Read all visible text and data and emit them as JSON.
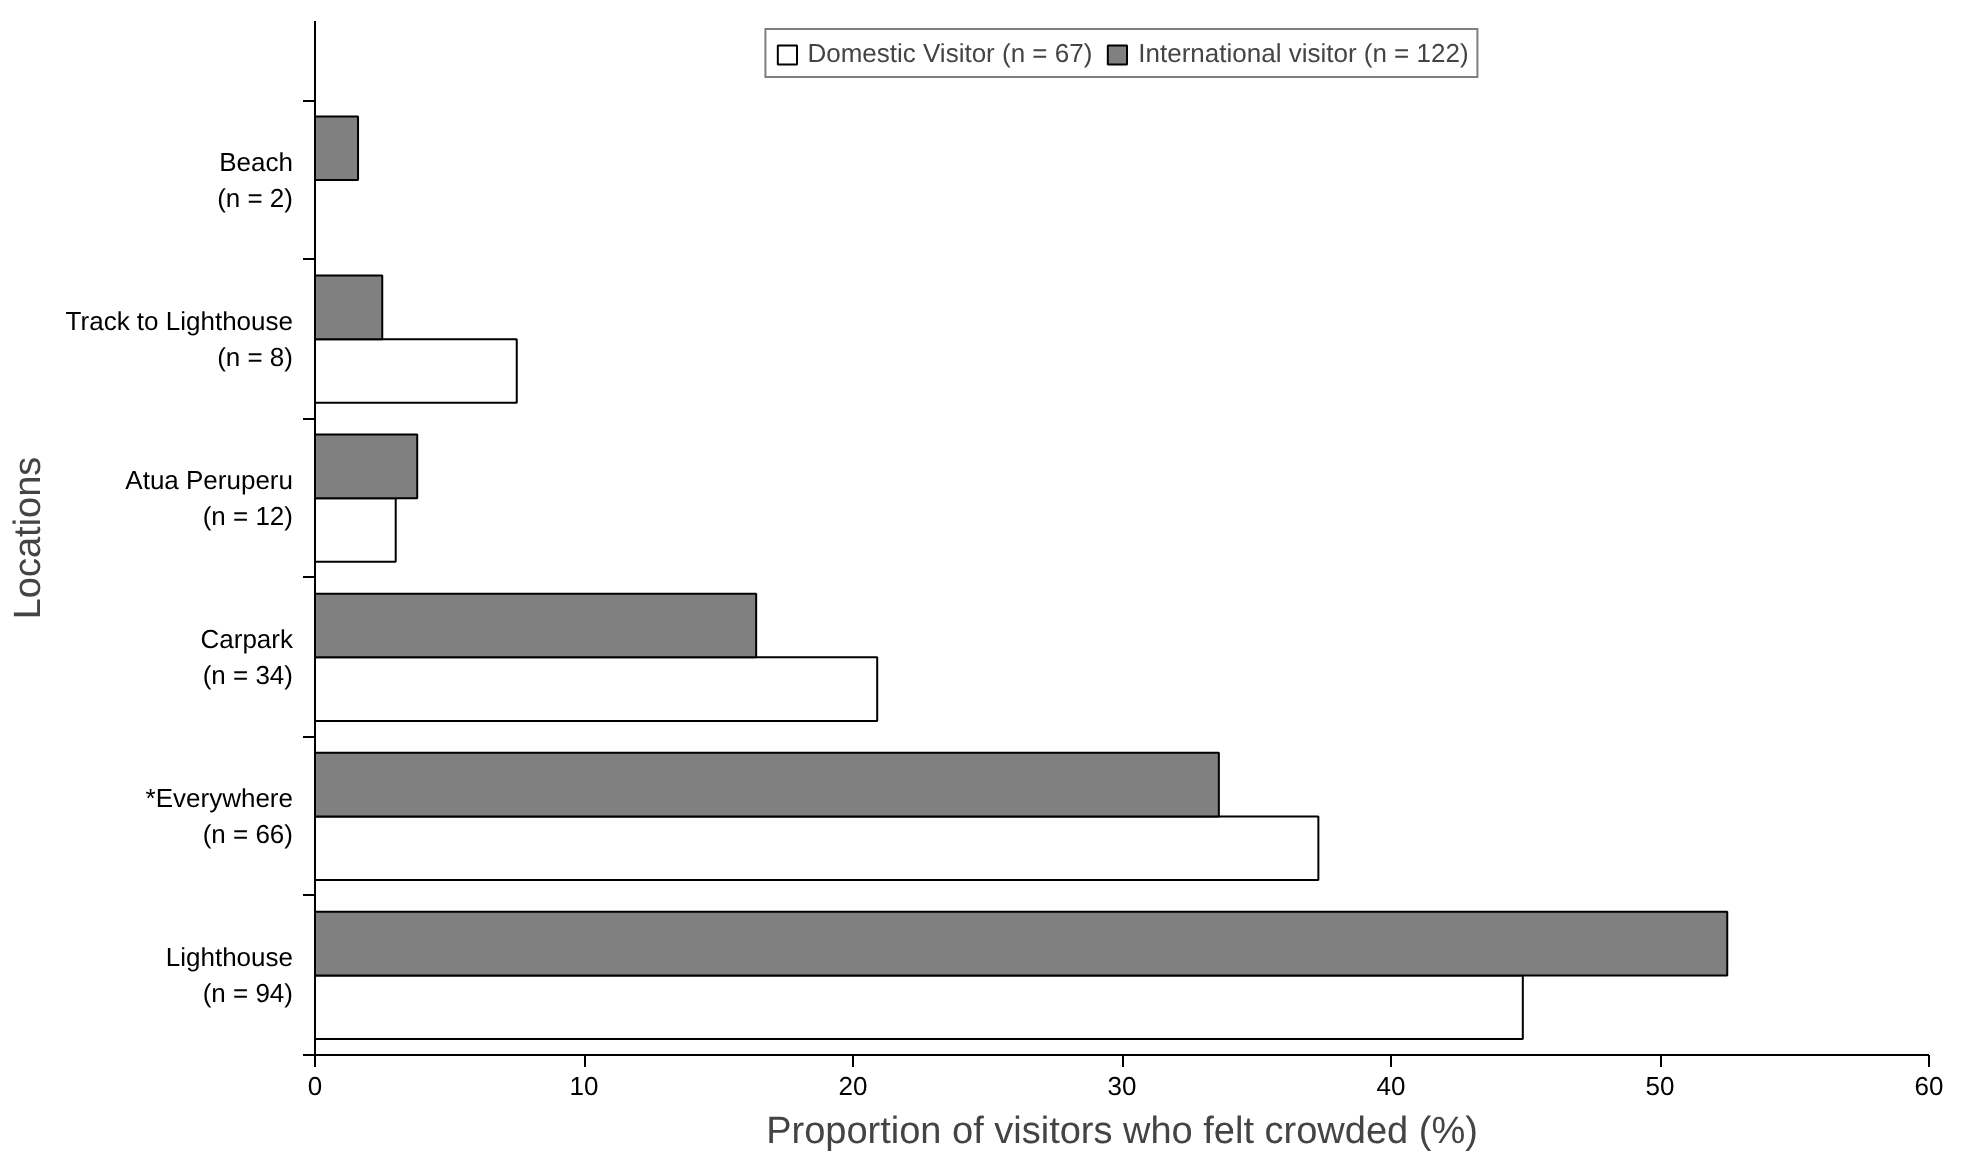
{
  "chart_data": {
    "type": "bar",
    "orientation": "horizontal",
    "xlabel": "Proportion of visitors who felt crowded (%)",
    "ylabel": "Locations",
    "categories": [
      "Beach\n(n = 2)",
      "Track to Lighthouse\n(n = 8)",
      "Atua Peruperu\n(n = 12)",
      "Carpark\n(n = 34)",
      "*Everywhere\n(n = 66)",
      "Lighthouse\n(n = 94)"
    ],
    "series": [
      {
        "name": "Domestic Visitor (n = 67)",
        "color": "#ffffff",
        "values": [
          null,
          7.5,
          3.0,
          20.9,
          37.3,
          44.9
        ]
      },
      {
        "name": "International visitor (n = 122)",
        "color": "#808080",
        "values": [
          1.6,
          2.5,
          3.8,
          16.4,
          33.6,
          52.5
        ]
      }
    ],
    "xlim": [
      0,
      60
    ],
    "xticks": [
      0,
      10,
      20,
      30,
      40,
      50,
      60
    ],
    "grid": false,
    "legend": "top"
  }
}
